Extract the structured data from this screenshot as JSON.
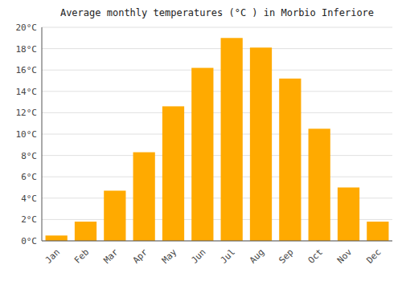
{
  "chart_data": {
    "type": "bar",
    "title": "Average monthly temperatures (°C ) in Morbio Inferiore",
    "categories": [
      "Jan",
      "Feb",
      "Mar",
      "Apr",
      "May",
      "Jun",
      "Jul",
      "Aug",
      "Sep",
      "Oct",
      "Nov",
      "Dec"
    ],
    "values": [
      0.5,
      1.8,
      4.7,
      8.3,
      12.6,
      16.2,
      19.0,
      18.1,
      15.2,
      10.5,
      5.0,
      1.8
    ],
    "color": "#FFAA00",
    "ylim": [
      0,
      20
    ],
    "yticks": [
      {
        "value": 0,
        "label": "0°C"
      },
      {
        "value": 2,
        "label": "2°C"
      },
      {
        "value": 4,
        "label": "4°C"
      },
      {
        "value": 6,
        "label": "6°C"
      },
      {
        "value": 8,
        "label": "8°C"
      },
      {
        "value": 10,
        "label": "10°C"
      },
      {
        "value": 12,
        "label": "12°C"
      },
      {
        "value": 14,
        "label": "14°C"
      },
      {
        "value": 16,
        "label": "16°C"
      },
      {
        "value": 18,
        "label": "18°C"
      },
      {
        "value": 20,
        "label": "20°C"
      }
    ],
    "grid": true
  }
}
